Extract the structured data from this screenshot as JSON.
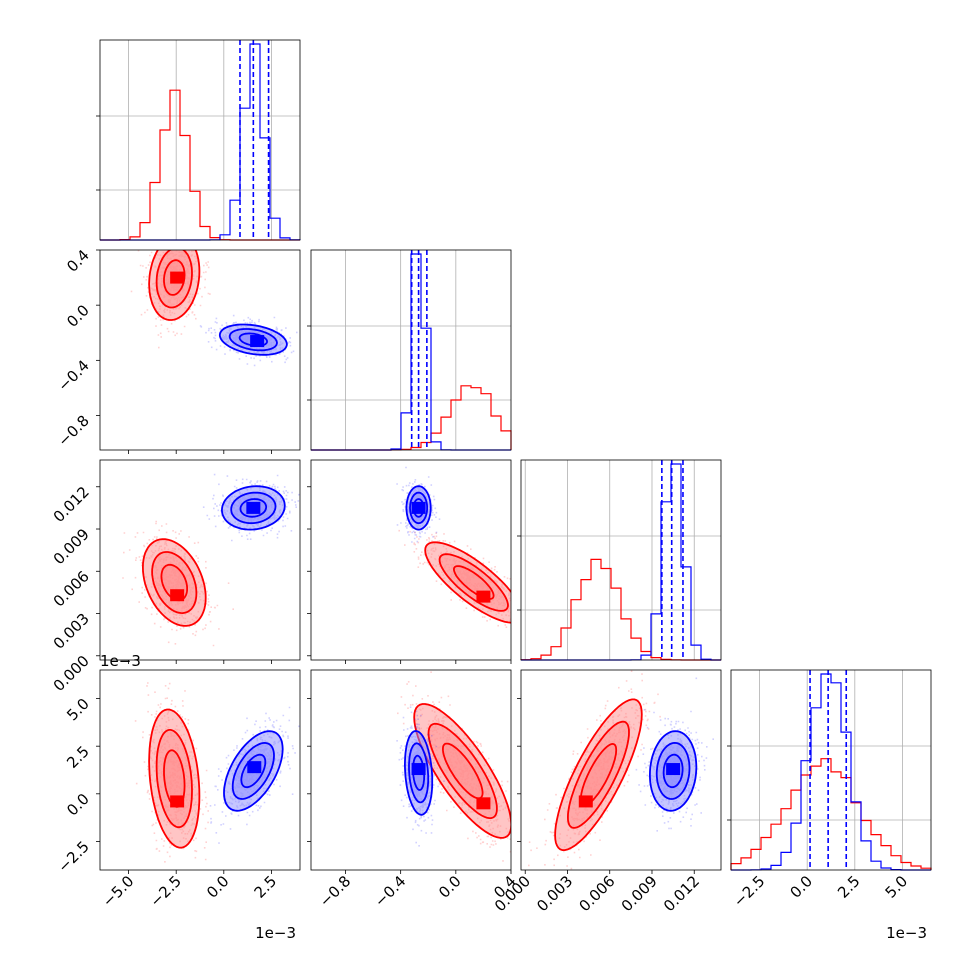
{
  "colors": {
    "red_series": "#ff0000",
    "blue_series": "#0000ff"
  },
  "chart_data": {
    "type": "corner",
    "title": "",
    "grid": true,
    "series": [
      {
        "name": "",
        "color": "#ff0000"
      },
      {
        "name": "",
        "color": "#0000ff"
      }
    ],
    "params": [
      {
        "range": [
          -6.5,
          4.0
        ],
        "ticks": [
          -5.0,
          -2.5,
          0.0,
          2.5
        ],
        "tick_labels": [
          "−5.0",
          "−2.5",
          "0.0",
          "2.5"
        ],
        "offset_label": "1e−3",
        "red": {
          "mean": -2.6,
          "sd": 0.75
        },
        "blue": {
          "mean": 1.55,
          "sd": 0.55,
          "quantiles": [
            0.85,
            1.55,
            2.35
          ]
        }
      },
      {
        "range": [
          -1.05,
          0.4
        ],
        "ticks": [
          -0.8,
          -0.4,
          0.0,
          0.4
        ],
        "tick_labels": [
          "−0.8",
          "−0.4",
          "0.0",
          "0.4"
        ],
        "offset_label": "",
        "red": {
          "mean": 0.12,
          "sd": 0.16
        },
        "blue": {
          "mean": -0.27,
          "sd": 0.05,
          "quantiles": [
            -0.32,
            -0.27,
            -0.21
          ]
        }
      },
      {
        "range": [
          -0.0003,
          0.0139
        ],
        "ticks": [
          0.0,
          0.003,
          0.006,
          0.009,
          0.012
        ],
        "tick_labels": [
          "0.000",
          "0.003",
          "0.006",
          "0.009",
          "0.012"
        ],
        "offset_label": "",
        "red": {
          "mean": 0.0052,
          "sd": 0.0015
        },
        "blue": {
          "mean": 0.0105,
          "sd": 0.0007,
          "quantiles": [
            0.0097,
            0.0104,
            0.0112
          ]
        }
      },
      {
        "range": [
          -4.0,
          6.5
        ],
        "ticks": [
          -2.5,
          0.0,
          2.5,
          5.0
        ],
        "tick_labels": [
          "−2.5",
          "0.0",
          "2.5",
          "5.0"
        ],
        "offset_label": "1e−3",
        "red": {
          "mean": 0.8,
          "sd": 1.9
        },
        "blue": {
          "mean": 1.1,
          "sd": 1.0,
          "quantiles": [
            0.15,
            1.1,
            2.05
          ]
        }
      }
    ],
    "pair_clusters": {
      "1-0": {
        "red": {
          "center": [
            -2.6,
            0.2
          ],
          "sd": [
            0.6,
            0.14
          ],
          "corr": 0.15,
          "peak": [
            -2.45,
            0.2
          ]
        },
        "blue": {
          "center": [
            1.55,
            -0.25
          ],
          "sd": [
            0.8,
            0.05
          ],
          "corr": -0.3,
          "peak": [
            1.75,
            -0.26
          ]
        }
      },
      "2-0": {
        "red": {
          "center": [
            -2.6,
            0.0052
          ],
          "sd": [
            0.75,
            0.0014
          ],
          "corr": -0.35,
          "peak": [
            -2.45,
            0.0043
          ]
        },
        "blue": {
          "center": [
            1.55,
            0.0105
          ],
          "sd": [
            0.75,
            0.0007
          ],
          "corr": 0.1,
          "peak": [
            1.55,
            0.0105
          ]
        }
      },
      "2-1": {
        "red": {
          "center": [
            0.13,
            0.0052
          ],
          "sd": [
            0.16,
            0.0013
          ],
          "corr": -0.8,
          "peak": [
            0.2,
            0.0042
          ]
        },
        "blue": {
          "center": [
            -0.27,
            0.0105
          ],
          "sd": [
            0.04,
            0.0007
          ],
          "corr": 0.0,
          "peak": [
            -0.27,
            0.0105
          ]
        }
      },
      "3-0": {
        "red": {
          "center": [
            -2.6,
            0.8
          ],
          "sd": [
            0.6,
            1.65
          ],
          "corr": -0.25,
          "peak": [
            -2.45,
            -0.4
          ]
        },
        "blue": {
          "center": [
            1.55,
            1.2
          ],
          "sd": [
            0.7,
            0.95
          ],
          "corr": 0.55,
          "peak": [
            1.6,
            1.4
          ]
        }
      },
      "3-1": {
        "red": {
          "center": [
            0.05,
            1.2
          ],
          "sd": [
            0.16,
            1.6
          ],
          "corr": -0.8,
          "peak": [
            0.2,
            -0.5
          ]
        },
        "blue": {
          "center": [
            -0.27,
            1.1
          ],
          "sd": [
            0.045,
            1.0
          ],
          "corr": -0.2,
          "peak": [
            -0.27,
            1.3
          ]
        }
      },
      "3-2": {
        "red": {
          "center": [
            0.0052,
            1.0
          ],
          "sd": [
            0.0014,
            1.8
          ],
          "corr": 0.8,
          "peak": [
            0.0043,
            -0.4
          ]
        },
        "blue": {
          "center": [
            0.0105,
            1.2
          ],
          "sd": [
            0.00075,
            0.95
          ],
          "corr": 0.1,
          "peak": [
            0.0105,
            1.3
          ]
        }
      }
    }
  }
}
